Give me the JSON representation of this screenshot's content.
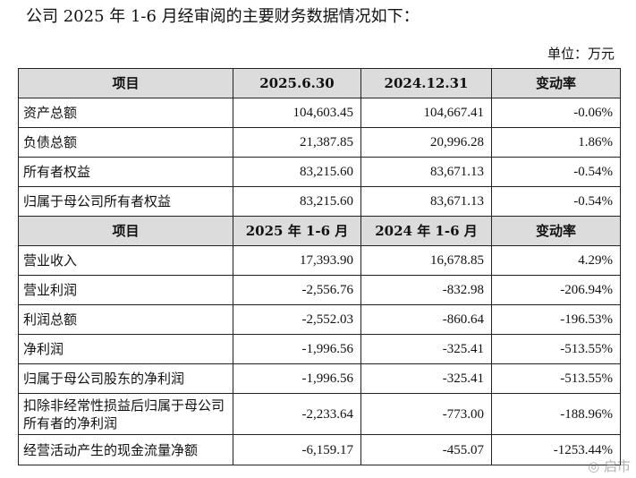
{
  "intro": "公司 2025 年 1-6 月经审阅的主要财务数据情况如下：",
  "unit": "单位：万元",
  "balance": {
    "headers": [
      "项目",
      "2025.6.30",
      "2024.12.31",
      "变动率"
    ],
    "rows": [
      {
        "label": "资产总额",
        "v1": "104,603.45",
        "v2": "104,667.41",
        "chg": "-0.06%"
      },
      {
        "label": "负债总额",
        "v1": "21,387.85",
        "v2": "20,996.28",
        "chg": "1.86%"
      },
      {
        "label": "所有者权益",
        "v1": "83,215.60",
        "v2": "83,671.13",
        "chg": "-0.54%"
      },
      {
        "label": "归属于母公司所有者权益",
        "v1": "83,215.60",
        "v2": "83,671.13",
        "chg": "-0.54%"
      }
    ]
  },
  "income": {
    "headers": [
      "项目",
      "2025 年 1-6 月",
      "2024 年 1-6 月",
      "变动率"
    ],
    "rows": [
      {
        "label": "营业收入",
        "v1": "17,393.90",
        "v2": "16,678.85",
        "chg": "4.29%"
      },
      {
        "label": "营业利润",
        "v1": "-2,556.76",
        "v2": "-832.98",
        "chg": "-206.94%"
      },
      {
        "label": "利润总额",
        "v1": "-2,552.03",
        "v2": "-860.64",
        "chg": "-196.53%"
      },
      {
        "label": "净利润",
        "v1": "-1,996.56",
        "v2": "-325.41",
        "chg": "-513.55%"
      },
      {
        "label": "归属于母公司股东的净利润",
        "v1": "-1,996.56",
        "v2": "-325.41",
        "chg": "-513.55%"
      },
      {
        "label": "扣除非经常性损益后归属于母公司所有者的净利润",
        "v1": "-2,233.64",
        "v2": "-773.00",
        "chg": "-188.96%"
      },
      {
        "label": "经营活动产生的现金流量净额",
        "v1": "-6,159.17",
        "v2": "-455.07",
        "chg": "-1253.44%"
      }
    ]
  },
  "watermark": "◎ 启市"
}
